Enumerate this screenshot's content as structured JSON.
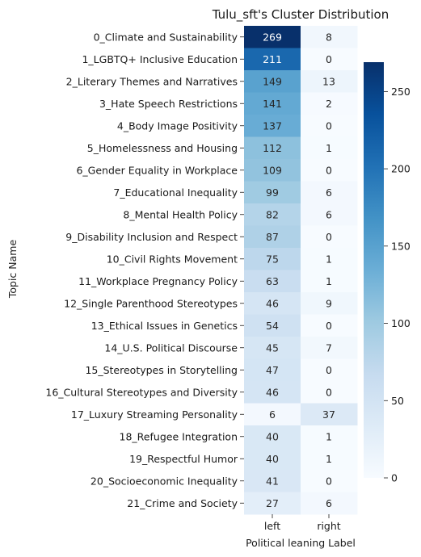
{
  "chart_data": {
    "type": "heatmap",
    "title": "Tulu_sft's Cluster Distribution",
    "xlabel": "Political leaning Label",
    "ylabel": "Topic Name",
    "x_categories": [
      "left",
      "right"
    ],
    "y_categories": [
      "0_Climate and Sustainability",
      "1_LGBTQ+ Inclusive Education",
      "2_Literary Themes and Narratives",
      "3_Hate Speech Restrictions",
      "4_Body Image Positivity",
      "5_Homelessness and Housing",
      "6_Gender Equality in Workplace",
      "7_Educational Inequality",
      "8_Mental Health Policy",
      "9_Disability Inclusion and Respect",
      "10_Civil Rights Movement",
      "11_Workplace Pregnancy Policy",
      "12_Single Parenthood Stereotypes",
      "13_Ethical Issues in Genetics",
      "14_U.S. Political Discourse",
      "15_Stereotypes in Storytelling",
      "16_Cultural Stereotypes and Diversity",
      "17_Luxury Streaming Personality",
      "18_Refugee Integration",
      "19_Respectful Humor",
      "20_Socioeconomic Inequality",
      "21_Crime and Society"
    ],
    "values": [
      [
        269,
        8
      ],
      [
        211,
        0
      ],
      [
        149,
        13
      ],
      [
        141,
        2
      ],
      [
        137,
        0
      ],
      [
        112,
        1
      ],
      [
        109,
        0
      ],
      [
        99,
        6
      ],
      [
        82,
        6
      ],
      [
        87,
        0
      ],
      [
        75,
        1
      ],
      [
        63,
        1
      ],
      [
        46,
        9
      ],
      [
        54,
        0
      ],
      [
        45,
        7
      ],
      [
        47,
        0
      ],
      [
        46,
        0
      ],
      [
        6,
        37
      ],
      [
        40,
        1
      ],
      [
        40,
        1
      ],
      [
        41,
        0
      ],
      [
        27,
        6
      ]
    ],
    "colormap": "Blues",
    "colorbar": {
      "vmin": 0,
      "vmax": 269,
      "ticks": [
        0,
        50,
        100,
        150,
        200,
        250
      ]
    }
  }
}
